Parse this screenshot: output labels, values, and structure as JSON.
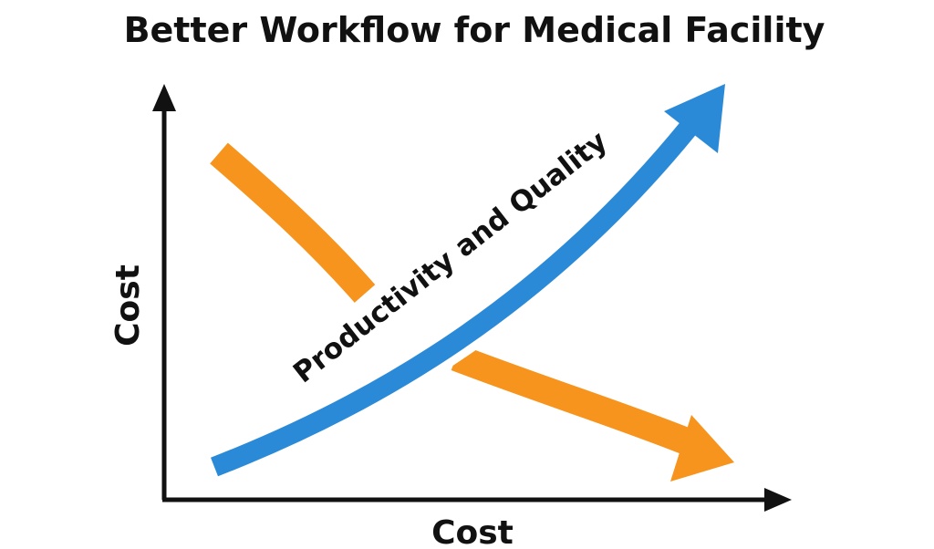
{
  "title": "Better Workflow for Medical Facility",
  "axes": {
    "y_label": "Cost",
    "x_label": "Cost"
  },
  "arrows": [
    {
      "label": "Productivity and Quality"
    }
  ]
}
